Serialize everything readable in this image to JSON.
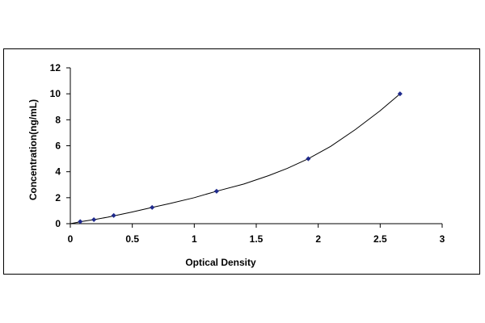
{
  "chart_data": {
    "type": "scatter",
    "title": "",
    "xlabel": "Optical Density",
    "ylabel": "Concentration(ng/mL)",
    "xlim": [
      0,
      3
    ],
    "ylim": [
      0,
      12
    ],
    "xticks": [
      "0",
      "0.5",
      "1",
      "1.5",
      "2",
      "2.5",
      "3"
    ],
    "yticks": [
      "0",
      "2",
      "4",
      "6",
      "8",
      "10",
      "12"
    ],
    "grid": false,
    "legend": "none",
    "marker_color": "#1f2a8c",
    "curve_color": "#000000",
    "series": [
      {
        "x": [
          0.08,
          0.19,
          0.35,
          0.66,
          1.18,
          1.92,
          2.66
        ],
        "y": [
          0.16,
          0.31,
          0.63,
          1.25,
          2.5,
          5.0,
          10.0
        ]
      }
    ],
    "fit_curve": {
      "x": [
        0.0,
        0.1,
        0.2,
        0.3,
        0.4,
        0.5,
        0.66,
        0.8,
        1.0,
        1.18,
        1.4,
        1.6,
        1.75,
        1.92,
        2.1,
        2.3,
        2.5,
        2.66
      ],
      "y": [
        0.0,
        0.18,
        0.33,
        0.5,
        0.7,
        0.9,
        1.25,
        1.55,
        2.0,
        2.5,
        3.05,
        3.7,
        4.25,
        5.0,
        5.95,
        7.25,
        8.7,
        10.0
      ]
    }
  }
}
